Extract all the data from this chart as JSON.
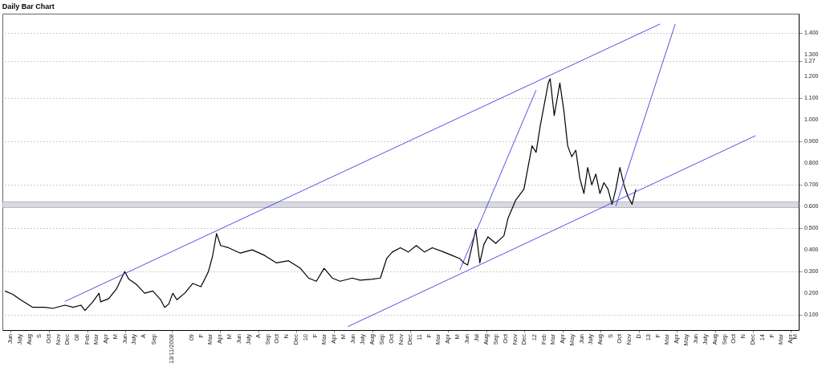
{
  "chart_data": {
    "type": "line",
    "title": "Daily Bar Chart",
    "xlim": [
      "2007-05-20",
      "2014-05-10"
    ],
    "xticks": [
      {
        "value": "2007-06-15",
        "label": "Jun"
      },
      {
        "value": "2007-07-15",
        "label": "July"
      },
      {
        "value": "2007-08-15",
        "label": "Aug"
      },
      {
        "value": "2007-09-15",
        "label": "S"
      },
      {
        "value": "2007-10-15",
        "label": "Oct"
      },
      {
        "value": "2007-11-15",
        "label": "Nov"
      },
      {
        "value": "2007-12-15",
        "label": "Dec"
      },
      {
        "value": "2008-01-15",
        "label": "08"
      },
      {
        "value": "2008-02-15",
        "label": "Feb"
      },
      {
        "value": "2008-03-15",
        "label": "Mar"
      },
      {
        "value": "2008-04-15",
        "label": "Apr"
      },
      {
        "value": "2008-05-15",
        "label": "M"
      },
      {
        "value": "2008-06-15",
        "label": "Jun"
      },
      {
        "value": "2008-07-15",
        "label": "July"
      },
      {
        "value": "2008-08-15",
        "label": "A"
      },
      {
        "value": "2008-09-15",
        "label": "Sep"
      },
      {
        "value": "2008-11-13",
        "label": "13/11/2008"
      },
      {
        "value": "2009-01-15",
        "label": "09"
      },
      {
        "value": "2009-02-15",
        "label": "F"
      },
      {
        "value": "2009-03-15",
        "label": "Mar"
      },
      {
        "value": "2009-04-15",
        "label": "Apr"
      },
      {
        "value": "2009-05-15",
        "label": "M"
      },
      {
        "value": "2009-06-15",
        "label": "Jun"
      },
      {
        "value": "2009-07-15",
        "label": "July"
      },
      {
        "value": "2009-08-15",
        "label": "A"
      },
      {
        "value": "2009-09-15",
        "label": "Sep"
      },
      {
        "value": "2009-10-15",
        "label": "Oct"
      },
      {
        "value": "2009-11-15",
        "label": "N"
      },
      {
        "value": "2009-12-15",
        "label": "Dec"
      },
      {
        "value": "2010-01-15",
        "label": "10"
      },
      {
        "value": "2010-02-15",
        "label": "F"
      },
      {
        "value": "2010-03-15",
        "label": "Mar"
      },
      {
        "value": "2010-04-15",
        "label": "Apr"
      },
      {
        "value": "2010-05-15",
        "label": "M"
      },
      {
        "value": "2010-06-15",
        "label": "Jun"
      },
      {
        "value": "2010-07-15",
        "label": "July"
      },
      {
        "value": "2010-08-15",
        "label": "Aug"
      },
      {
        "value": "2010-09-15",
        "label": "Sep"
      },
      {
        "value": "2010-10-15",
        "label": "Oct"
      },
      {
        "value": "2010-11-15",
        "label": "Nov"
      },
      {
        "value": "2010-12-15",
        "label": "Dec"
      },
      {
        "value": "2011-01-15",
        "label": "11"
      },
      {
        "value": "2011-02-15",
        "label": "F"
      },
      {
        "value": "2011-03-15",
        "label": "Mar"
      },
      {
        "value": "2011-04-15",
        "label": "Apr"
      },
      {
        "value": "2011-05-15",
        "label": "M"
      },
      {
        "value": "2011-06-15",
        "label": "Jun"
      },
      {
        "value": "2011-07-15",
        "label": "Jul"
      },
      {
        "value": "2011-08-15",
        "label": "Aug"
      },
      {
        "value": "2011-09-15",
        "label": "Sep"
      },
      {
        "value": "2011-10-15",
        "label": "Oct"
      },
      {
        "value": "2011-11-15",
        "label": "Nov"
      },
      {
        "value": "2011-12-15",
        "label": "Dec"
      },
      {
        "value": "2012-01-15",
        "label": "12"
      },
      {
        "value": "2012-02-15",
        "label": "Feb"
      },
      {
        "value": "2012-03-15",
        "label": "Mar"
      },
      {
        "value": "2012-04-15",
        "label": "Apr"
      },
      {
        "value": "2012-05-15",
        "label": "May"
      },
      {
        "value": "2012-06-15",
        "label": "Jun"
      },
      {
        "value": "2012-07-15",
        "label": "July"
      },
      {
        "value": "2012-08-15",
        "label": "Aug"
      },
      {
        "value": "2012-09-15",
        "label": "S"
      },
      {
        "value": "2012-10-15",
        "label": "Oct"
      },
      {
        "value": "2012-11-15",
        "label": "Nov"
      },
      {
        "value": "2012-12-15",
        "label": "D"
      },
      {
        "value": "2013-01-15",
        "label": "13"
      },
      {
        "value": "2013-02-15",
        "label": "F"
      },
      {
        "value": "2013-03-15",
        "label": "Mar"
      },
      {
        "value": "2013-04-15",
        "label": "Apr"
      },
      {
        "value": "2013-05-15",
        "label": "May"
      },
      {
        "value": "2013-06-15",
        "label": "Jun"
      },
      {
        "value": "2013-07-15",
        "label": "July"
      },
      {
        "value": "2013-08-15",
        "label": "Aug"
      },
      {
        "value": "2013-09-15",
        "label": "Sep"
      },
      {
        "value": "2013-10-15",
        "label": "Oct"
      },
      {
        "value": "2013-11-15",
        "label": "N"
      },
      {
        "value": "2013-12-15",
        "label": "Dec"
      },
      {
        "value": "2014-01-15",
        "label": "14"
      },
      {
        "value": "2014-02-15",
        "label": "F"
      },
      {
        "value": "2014-03-15",
        "label": "Mar"
      },
      {
        "value": "2014-04-15",
        "label": "Apr"
      },
      {
        "value": "2014-05-01",
        "label": "M"
      }
    ],
    "ylim": [
      0.03,
      1.49
    ],
    "yticks": [
      {
        "value": 0.1,
        "label": "0.100"
      },
      {
        "value": 0.2,
        "label": "0.200"
      },
      {
        "value": 0.3,
        "label": "0.300"
      },
      {
        "value": 0.4,
        "label": "0.400"
      },
      {
        "value": 0.5,
        "label": "0.500"
      },
      {
        "value": 0.6,
        "label": "0.600"
      },
      {
        "value": 0.7,
        "label": "0.700"
      },
      {
        "value": 0.8,
        "label": "0.800"
      },
      {
        "value": 0.9,
        "label": "0.900"
      },
      {
        "value": 1.0,
        "label": "1.000"
      },
      {
        "value": 1.1,
        "label": "1.100"
      },
      {
        "value": 1.2,
        "label": "1.200"
      },
      {
        "value": 1.27,
        "label": "1.27"
      },
      {
        "value": 1.3,
        "label": "1.300"
      },
      {
        "value": 1.4,
        "label": "1.400"
      }
    ],
    "grid": "y",
    "bands": [
      {
        "axis": "y",
        "from": 0.595,
        "to": 0.622,
        "color": "#d8d8e4"
      }
    ],
    "series": [
      {
        "color": "#000000",
        "x": [
          "2007-05-28",
          "2007-06-22",
          "2007-07-17",
          "2007-08-25",
          "2007-10-02",
          "2007-10-28",
          "2007-12-06",
          "2008-01-01",
          "2008-01-26",
          "2008-02-08",
          "2008-03-04",
          "2008-03-24",
          "2008-03-29",
          "2008-04-24",
          "2008-05-19",
          "2008-06-14",
          "2008-06-27",
          "2008-07-22",
          "2008-08-17",
          "2008-09-12",
          "2008-10-07",
          "2008-10-20",
          "2008-11-02",
          "2008-11-15",
          "2008-11-28",
          "2008-12-23",
          "2009-01-18",
          "2009-02-13",
          "2009-03-09",
          "2009-03-22",
          "2009-04-04",
          "2009-04-17",
          "2009-05-12",
          "2009-06-19",
          "2009-07-27",
          "2009-09-04",
          "2009-10-12",
          "2009-11-20",
          "2009-12-28",
          "2010-01-23",
          "2010-02-17",
          "2010-03-14",
          "2010-04-09",
          "2010-05-04",
          "2010-06-12",
          "2010-07-07",
          "2010-08-15",
          "2010-09-10",
          "2010-09-30",
          "2010-10-18",
          "2010-11-13",
          "2010-12-08",
          "2011-01-03",
          "2011-01-29",
          "2011-02-23",
          "2011-04-01",
          "2011-04-26",
          "2011-05-22",
          "2011-06-04",
          "2011-06-16",
          "2011-06-29",
          "2011-07-12",
          "2011-07-25",
          "2011-08-07",
          "2011-08-20",
          "2011-09-14",
          "2011-10-10",
          "2011-10-23",
          "2011-11-17",
          "2011-12-13",
          "2011-12-26",
          "2012-01-08",
          "2012-01-21",
          "2012-02-03",
          "2012-02-16",
          "2012-02-29",
          "2012-03-06",
          "2012-03-19",
          "2012-04-06",
          "2012-04-19",
          "2012-05-01",
          "2012-05-14",
          "2012-05-27",
          "2012-06-09",
          "2012-06-22",
          "2012-07-04",
          "2012-07-17",
          "2012-07-30",
          "2012-08-12",
          "2012-08-25",
          "2012-09-07",
          "2012-09-20",
          "2012-10-02",
          "2012-10-15",
          "2012-10-28",
          "2012-11-10",
          "2012-11-23",
          "2012-12-05"
        ],
        "values": [
          0.21,
          0.195,
          0.17,
          0.135,
          0.135,
          0.13,
          0.145,
          0.135,
          0.145,
          0.12,
          0.16,
          0.2,
          0.16,
          0.175,
          0.22,
          0.3,
          0.265,
          0.24,
          0.2,
          0.21,
          0.17,
          0.135,
          0.15,
          0.2,
          0.17,
          0.2,
          0.245,
          0.23,
          0.3,
          0.37,
          0.475,
          0.42,
          0.41,
          0.385,
          0.4,
          0.375,
          0.34,
          0.35,
          0.315,
          0.27,
          0.255,
          0.315,
          0.27,
          0.255,
          0.27,
          0.26,
          0.265,
          0.27,
          0.36,
          0.39,
          0.41,
          0.39,
          0.42,
          0.39,
          0.41,
          0.39,
          0.375,
          0.36,
          0.34,
          0.33,
          0.41,
          0.495,
          0.34,
          0.425,
          0.46,
          0.43,
          0.465,
          0.545,
          0.63,
          0.68,
          0.78,
          0.88,
          0.85,
          0.97,
          1.07,
          1.17,
          1.19,
          1.02,
          1.17,
          1.04,
          0.88,
          0.83,
          0.86,
          0.73,
          0.66,
          0.78,
          0.7,
          0.75,
          0.66,
          0.71,
          0.68,
          0.61,
          0.68,
          0.78,
          0.7,
          0.645,
          0.61,
          0.68
        ]
      },
      {
        "color": "#3c3ce6",
        "x": [
          "2007-12-06",
          "2013-02-20"
        ],
        "values": [
          0.162,
          1.442
        ]
      },
      {
        "color": "#3c3ce6",
        "x": [
          "2010-05-29",
          "2013-12-23"
        ],
        "values": [
          0.046,
          0.927
        ]
      },
      {
        "color": "#3c3ce6",
        "x": [
          "2011-05-22",
          "2012-01-21"
        ],
        "values": [
          0.307,
          1.137
        ]
      },
      {
        "color": "#3c3ce6",
        "x": [
          "2012-10-02",
          "2013-04-10"
        ],
        "values": [
          0.602,
          1.442
        ]
      }
    ]
  }
}
